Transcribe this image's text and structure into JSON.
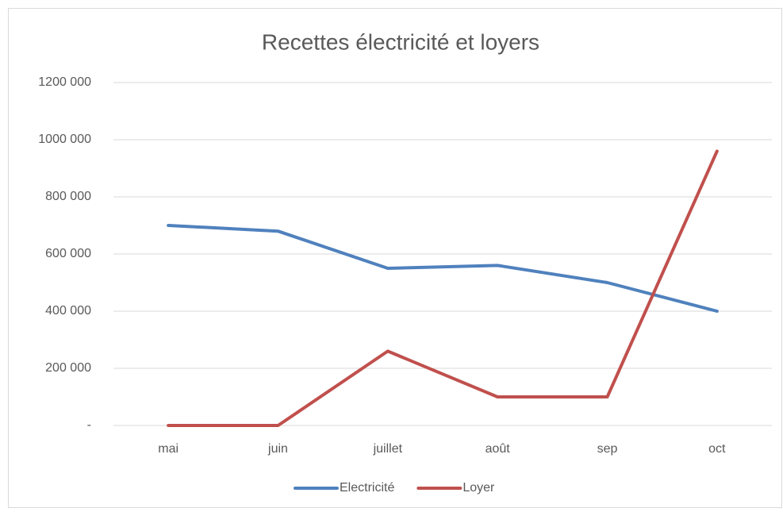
{
  "chart_data": {
    "type": "line",
    "title": "Recettes électricité et loyers",
    "categories": [
      "mai",
      "juin",
      "juillet",
      "août",
      "sep",
      "oct"
    ],
    "series": [
      {
        "name": "Electricité",
        "color": "#4f81bd",
        "values": [
          700000,
          680000,
          550000,
          560000,
          500000,
          400000
        ]
      },
      {
        "name": "Loyer",
        "color": "#c0504d",
        "values": [
          0,
          0,
          260000,
          100000,
          100000,
          960000
        ]
      }
    ],
    "ylim": [
      0,
      1200000
    ],
    "yticks": [
      {
        "value": 0,
        "label": "-"
      },
      {
        "value": 200000,
        "label": "200 000"
      },
      {
        "value": 400000,
        "label": "400 000"
      },
      {
        "value": 600000,
        "label": "600 000"
      },
      {
        "value": 800000,
        "label": "800 000"
      },
      {
        "value": 1000000,
        "label": "1000 000"
      },
      {
        "value": 1200000,
        "label": "1200 000"
      }
    ],
    "grid": true,
    "legend": "bottom"
  }
}
